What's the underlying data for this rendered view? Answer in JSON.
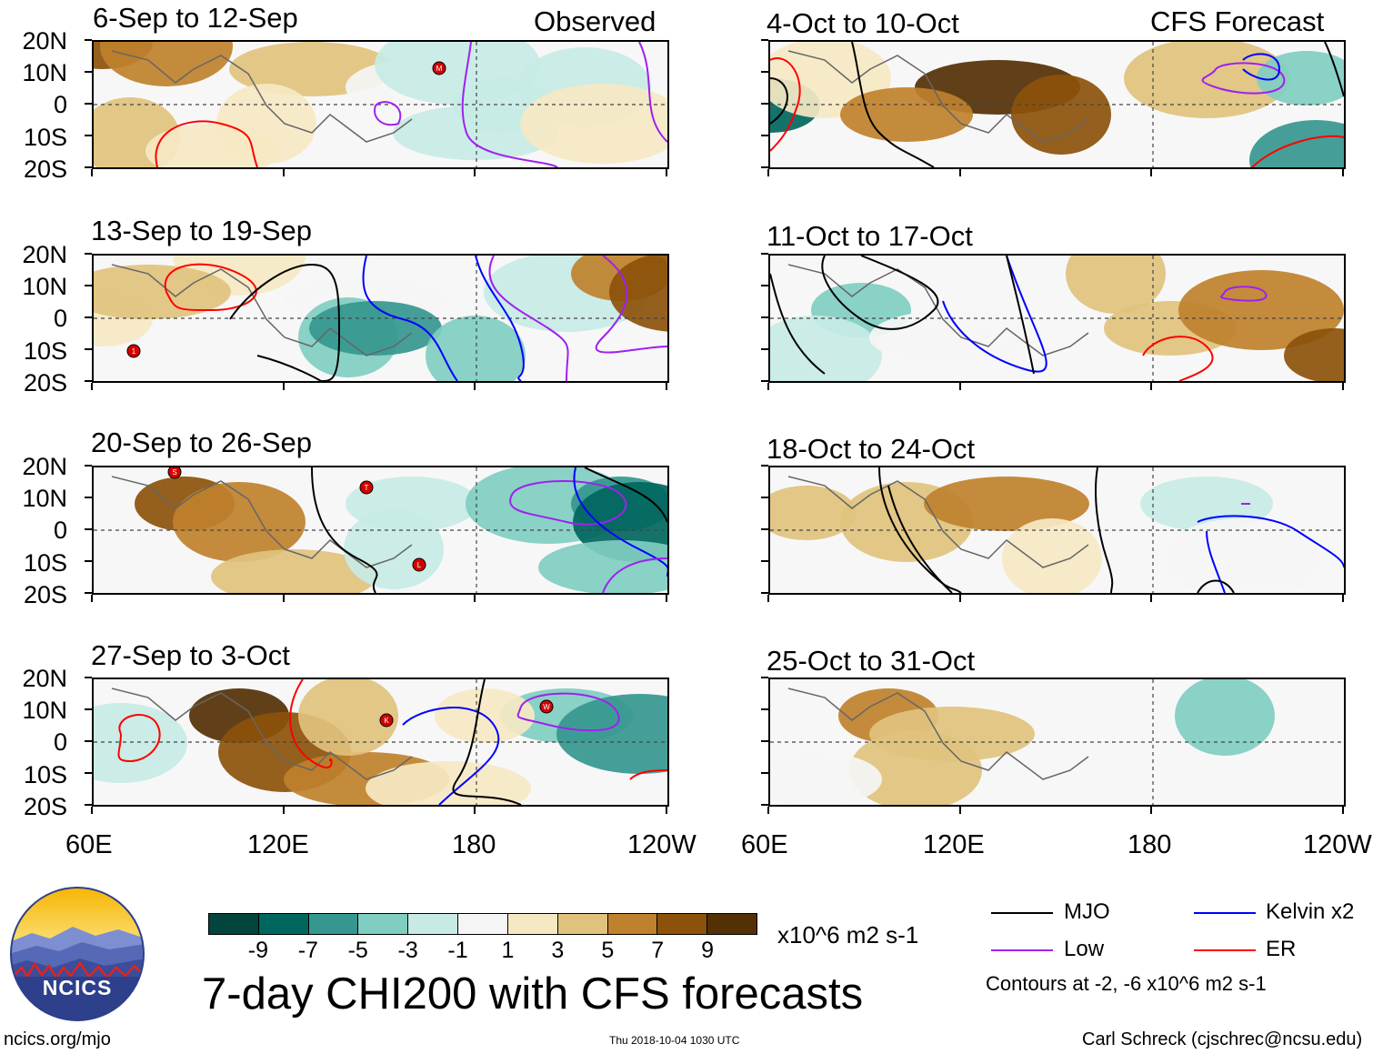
{
  "header": {
    "observed_label": "Observed",
    "forecast_label": "CFS Forecast"
  },
  "lat_labels": [
    "20N",
    "10N",
    "0",
    "10S",
    "20S"
  ],
  "lon_labels": [
    "60E",
    "120E",
    "180",
    "120W"
  ],
  "panels": {
    "obs": [
      {
        "title": "6-Sep to 12-Sep"
      },
      {
        "title": "13-Sep to 19-Sep"
      },
      {
        "title": "20-Sep to 26-Sep"
      },
      {
        "title": "27-Sep to 3-Oct"
      }
    ],
    "fcst": [
      {
        "title": "4-Oct to 10-Oct"
      },
      {
        "title": "11-Oct to 17-Oct"
      },
      {
        "title": "18-Oct to 24-Oct"
      },
      {
        "title": "25-Oct to 31-Oct"
      }
    ]
  },
  "colorbar": {
    "ticks": [
      "-9",
      "-7",
      "-5",
      "-3",
      "-1",
      "1",
      "3",
      "5",
      "7",
      "9"
    ],
    "units": "x10^6 m2 s-1",
    "colors": [
      "#01453d",
      "#00665e",
      "#35978f",
      "#80cdc1",
      "#c7eae5",
      "#f5f5f5",
      "#f6e8c3",
      "#dfc27d",
      "#bf812d",
      "#8c510a",
      "#543005"
    ]
  },
  "main_title": "7-day CHI200 with CFS forecasts",
  "legend": {
    "mjo": "MJO",
    "kelvin": "Kelvin x2",
    "low": "Low",
    "er": "ER",
    "contours_note": "Contours at -2, -6 x10^6 m2 s-1",
    "colors": {
      "mjo": "#000000",
      "kelvin": "#0000ff",
      "low": "#a020f0",
      "er": "#ff0000"
    }
  },
  "logo_text": "NCICS",
  "footer": {
    "url": "ncics.org/mjo",
    "timestamp": "Thu 2018-10-04 1030 UTC",
    "author": "Carl Schreck (cjschrec@ncsu.edu)"
  },
  "storm_labels": [
    "M",
    "1",
    "S",
    "T",
    "L",
    "K",
    "W"
  ],
  "chart_data": {
    "type": "heatmap",
    "title": "7-day CHI200 with CFS forecasts",
    "variable": "CHI200 anomaly",
    "units": "x10^6 m2 s-1",
    "x_range": [
      "60E",
      "120W"
    ],
    "y_range": [
      "20S",
      "20N"
    ],
    "levels": [
      -9,
      -7,
      -5,
      -3,
      -1,
      1,
      3,
      5,
      7,
      9
    ],
    "contour_levels": [
      -2,
      -6
    ],
    "panels_observed": [
      "6-Sep to 12-Sep",
      "13-Sep to 19-Sep",
      "20-Sep to 26-Sep",
      "27-Sep to 3-Oct"
    ],
    "panels_forecast": [
      "4-Oct to 10-Oct",
      "11-Oct to 17-Oct",
      "18-Oct to 24-Oct",
      "25-Oct to 31-Oct"
    ],
    "series": [
      {
        "name": "MJO"
      },
      {
        "name": "Kelvin x2"
      },
      {
        "name": "Low"
      },
      {
        "name": "ER"
      }
    ]
  }
}
